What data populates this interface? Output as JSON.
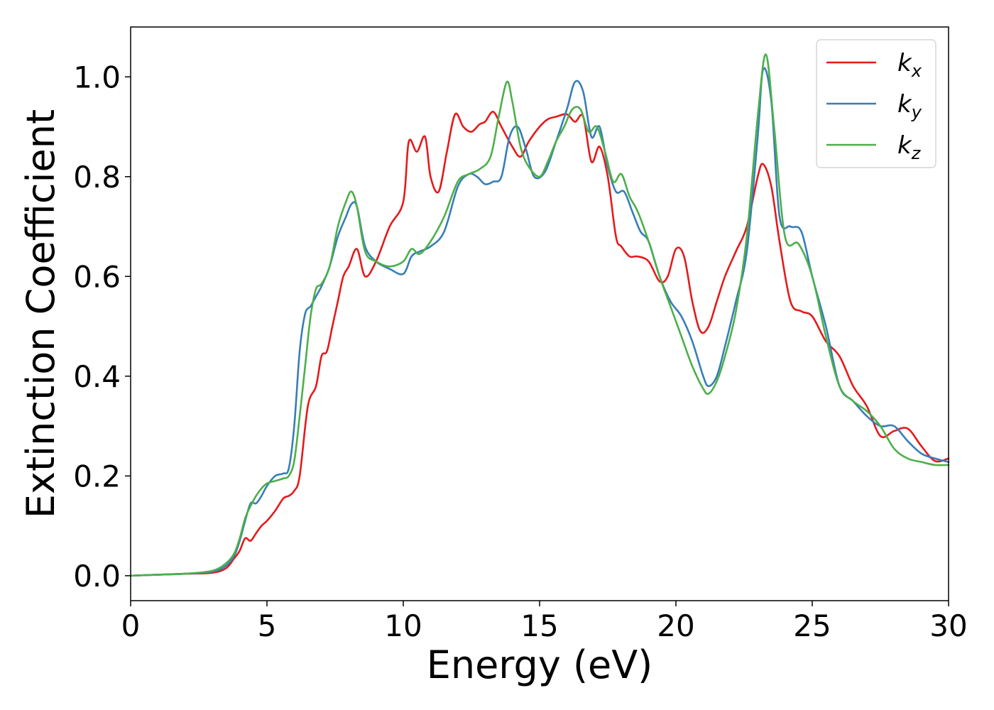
{
  "chart_data": {
    "type": "line",
    "title": "",
    "xlabel": "Energy (eV)",
    "ylabel": "Extinction Coefficient",
    "xlim": [
      0,
      30
    ],
    "ylim": [
      -0.05,
      1.1
    ],
    "xticks": [
      0,
      5,
      10,
      15,
      20,
      25,
      30
    ],
    "xtick_labels": [
      "0",
      "5",
      "10",
      "15",
      "20",
      "25",
      "30"
    ],
    "yticks": [
      0.0,
      0.2,
      0.4,
      0.6,
      0.8,
      1.0
    ],
    "ytick_labels": [
      "0.0",
      "0.2",
      "0.4",
      "0.6",
      "0.8",
      "1.0"
    ],
    "grid": false,
    "legend_position": "top-right",
    "series": [
      {
        "name": "kx",
        "label_base": "k",
        "label_sub": "x",
        "color": "#e41a1c",
        "x": [
          0,
          1,
          2,
          3,
          3.5,
          3.8,
          4.0,
          4.2,
          4.4,
          4.6,
          4.8,
          5.0,
          5.3,
          5.6,
          5.8,
          6.0,
          6.2,
          6.5,
          6.8,
          7.0,
          7.2,
          7.4,
          7.6,
          7.8,
          8.0,
          8.3,
          8.6,
          9.0,
          9.5,
          10.0,
          10.2,
          10.5,
          10.8,
          11.0,
          11.3,
          11.6,
          11.9,
          12.2,
          12.5,
          12.8,
          13.0,
          13.3,
          13.6,
          14.0,
          14.3,
          14.6,
          15.0,
          15.3,
          15.6,
          16.0,
          16.3,
          16.6,
          16.9,
          17.2,
          17.5,
          17.8,
          18.0,
          18.3,
          18.6,
          19.0,
          19.4,
          19.7,
          20.0,
          20.3,
          20.6,
          20.9,
          21.2,
          21.5,
          21.8,
          22.2,
          22.6,
          23.0,
          23.2,
          23.5,
          23.8,
          24.2,
          24.6,
          25.0,
          25.5,
          26.0,
          26.5,
          27.0,
          27.5,
          28.0,
          28.5,
          29.0,
          29.5,
          30.0
        ],
        "y": [
          0.0,
          0.002,
          0.004,
          0.006,
          0.015,
          0.035,
          0.05,
          0.075,
          0.07,
          0.085,
          0.1,
          0.11,
          0.13,
          0.155,
          0.16,
          0.17,
          0.2,
          0.34,
          0.38,
          0.44,
          0.45,
          0.5,
          0.55,
          0.6,
          0.62,
          0.655,
          0.6,
          0.63,
          0.7,
          0.75,
          0.87,
          0.85,
          0.88,
          0.8,
          0.77,
          0.85,
          0.925,
          0.9,
          0.89,
          0.905,
          0.91,
          0.93,
          0.9,
          0.86,
          0.84,
          0.87,
          0.9,
          0.915,
          0.92,
          0.925,
          0.91,
          0.92,
          0.83,
          0.86,
          0.8,
          0.68,
          0.66,
          0.64,
          0.64,
          0.63,
          0.59,
          0.6,
          0.655,
          0.64,
          0.55,
          0.49,
          0.5,
          0.55,
          0.6,
          0.65,
          0.7,
          0.8,
          0.825,
          0.78,
          0.67,
          0.55,
          0.53,
          0.52,
          0.47,
          0.44,
          0.38,
          0.34,
          0.28,
          0.29,
          0.295,
          0.26,
          0.23,
          0.235
        ]
      },
      {
        "name": "ky",
        "label_base": "k",
        "label_sub": "y",
        "color": "#377eb8",
        "x": [
          0,
          1,
          2,
          3,
          3.5,
          3.8,
          4.0,
          4.2,
          4.4,
          4.6,
          4.8,
          5.0,
          5.3,
          5.6,
          5.8,
          6.0,
          6.2,
          6.4,
          6.6,
          6.8,
          7.0,
          7.3,
          7.6,
          7.9,
          8.1,
          8.3,
          8.6,
          9.0,
          9.5,
          10.0,
          10.3,
          10.6,
          11.0,
          11.5,
          12.0,
          12.4,
          12.7,
          13.0,
          13.3,
          13.6,
          13.9,
          14.2,
          14.5,
          14.8,
          15.2,
          15.6,
          16.0,
          16.3,
          16.6,
          16.9,
          17.2,
          17.5,
          17.8,
          18.1,
          18.4,
          18.7,
          19.0,
          19.4,
          19.8,
          20.2,
          20.6,
          21.0,
          21.2,
          21.5,
          21.8,
          22.2,
          22.6,
          23.0,
          23.2,
          23.5,
          23.8,
          24.2,
          24.6,
          25.0,
          25.5,
          26.0,
          26.5,
          27.0,
          27.5,
          28.0,
          28.5,
          29.0,
          29.5,
          30.0
        ],
        "y": [
          0.0,
          0.002,
          0.004,
          0.008,
          0.02,
          0.04,
          0.07,
          0.11,
          0.145,
          0.145,
          0.16,
          0.18,
          0.2,
          0.205,
          0.215,
          0.3,
          0.45,
          0.525,
          0.54,
          0.56,
          0.58,
          0.62,
          0.68,
          0.72,
          0.745,
          0.74,
          0.66,
          0.63,
          0.615,
          0.605,
          0.64,
          0.65,
          0.66,
          0.69,
          0.78,
          0.805,
          0.8,
          0.785,
          0.79,
          0.8,
          0.88,
          0.9,
          0.855,
          0.8,
          0.81,
          0.87,
          0.935,
          0.99,
          0.97,
          0.88,
          0.9,
          0.82,
          0.77,
          0.77,
          0.73,
          0.69,
          0.67,
          0.6,
          0.55,
          0.52,
          0.47,
          0.4,
          0.38,
          0.4,
          0.46,
          0.55,
          0.65,
          0.88,
          1.015,
          0.95,
          0.72,
          0.7,
          0.69,
          0.6,
          0.5,
          0.38,
          0.35,
          0.32,
          0.3,
          0.3,
          0.27,
          0.245,
          0.235,
          0.228
        ]
      },
      {
        "name": "kz",
        "label_base": "k",
        "label_sub": "z",
        "color": "#4daf4a",
        "x": [
          0,
          1,
          2,
          3,
          3.5,
          3.8,
          4.0,
          4.2,
          4.4,
          4.6,
          4.8,
          5.0,
          5.3,
          5.6,
          5.8,
          6.0,
          6.2,
          6.4,
          6.6,
          6.8,
          7.0,
          7.3,
          7.6,
          7.9,
          8.1,
          8.3,
          8.6,
          9.0,
          9.5,
          10.0,
          10.3,
          10.6,
          11.0,
          11.5,
          12.0,
          12.4,
          12.8,
          13.2,
          13.5,
          13.8,
          14.0,
          14.3,
          14.6,
          15.0,
          15.3,
          15.6,
          15.9,
          16.2,
          16.5,
          16.8,
          17.1,
          17.4,
          17.7,
          18.0,
          18.3,
          18.6,
          19.0,
          19.4,
          19.8,
          20.2,
          20.6,
          21.0,
          21.2,
          21.5,
          21.8,
          22.2,
          22.6,
          23.0,
          23.3,
          23.6,
          24.0,
          24.5,
          25.0,
          25.5,
          26.0,
          26.5,
          27.0,
          27.5,
          28.0,
          28.5,
          29.0,
          29.5,
          30.0
        ],
        "y": [
          0.0,
          0.002,
          0.004,
          0.01,
          0.025,
          0.045,
          0.075,
          0.115,
          0.14,
          0.16,
          0.175,
          0.185,
          0.19,
          0.195,
          0.2,
          0.23,
          0.32,
          0.42,
          0.52,
          0.575,
          0.585,
          0.62,
          0.7,
          0.75,
          0.77,
          0.74,
          0.65,
          0.63,
          0.62,
          0.63,
          0.655,
          0.645,
          0.67,
          0.72,
          0.79,
          0.805,
          0.815,
          0.84,
          0.92,
          0.99,
          0.95,
          0.86,
          0.82,
          0.8,
          0.83,
          0.87,
          0.9,
          0.935,
          0.935,
          0.89,
          0.9,
          0.85,
          0.79,
          0.805,
          0.76,
          0.73,
          0.67,
          0.6,
          0.54,
          0.48,
          0.42,
          0.375,
          0.365,
          0.39,
          0.44,
          0.53,
          0.68,
          0.92,
          1.045,
          0.9,
          0.68,
          0.665,
          0.6,
          0.48,
          0.38,
          0.35,
          0.33,
          0.3,
          0.255,
          0.235,
          0.228,
          0.222,
          0.222
        ]
      }
    ]
  }
}
